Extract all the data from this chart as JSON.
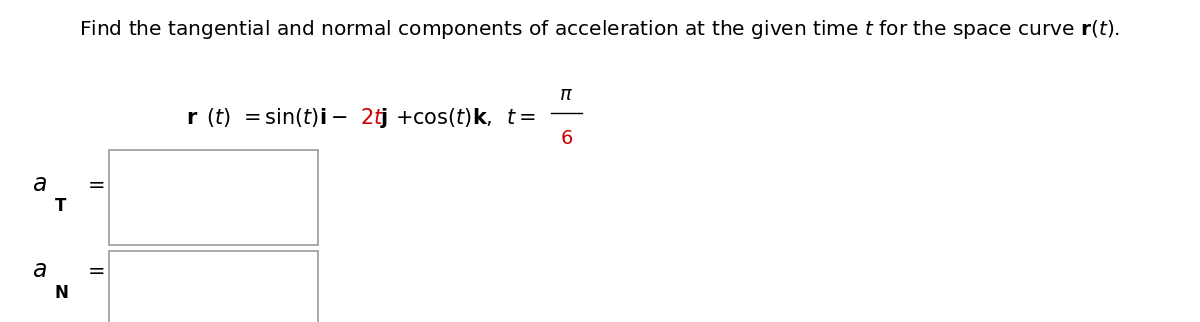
{
  "background_color": "#ffffff",
  "text_color": "#000000",
  "red_color": "#cc0000",
  "box_edge_color": "#999999",
  "title_fontsize": 14.5,
  "formula_fontsize": 15,
  "label_fontsize": 16,
  "sub_fontsize": 12
}
